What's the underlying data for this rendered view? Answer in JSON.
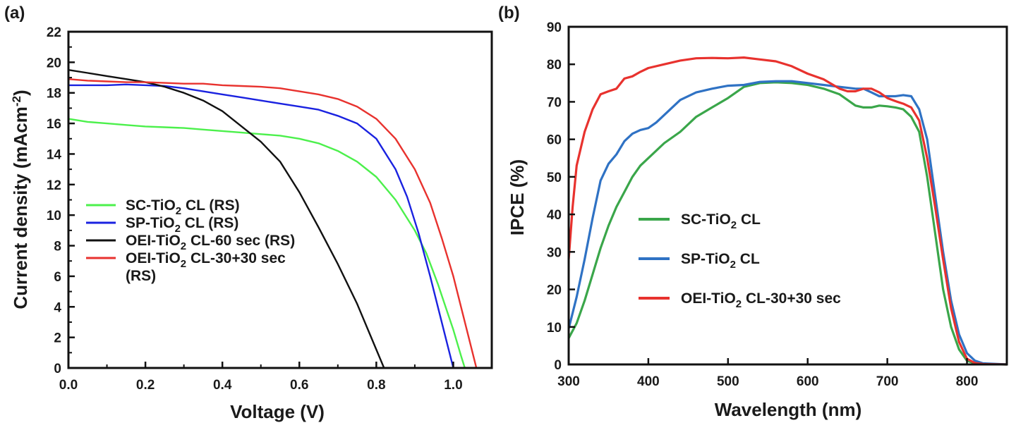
{
  "chart_data": [
    {
      "panel_label": "(a)",
      "type": "line",
      "title": "",
      "xlabel": "Voltage (V)",
      "ylabel_main": "Current density (mAcm",
      "ylabel_sup": "-2",
      "ylabel_tail": ")",
      "xlim": [
        0.0,
        1.1
      ],
      "ylim": [
        0,
        22
      ],
      "xticks": [
        0.0,
        0.2,
        0.4,
        0.6,
        0.8,
        1.0
      ],
      "xtick_labels": [
        "0.0",
        "0.2",
        "0.4",
        "0.6",
        "0.8",
        "1.0"
      ],
      "yticks": [
        0,
        2,
        4,
        6,
        8,
        10,
        12,
        14,
        16,
        18,
        20,
        22
      ],
      "ytick_labels": [
        "0",
        "2",
        "4",
        "6",
        "8",
        "10",
        "12",
        "14",
        "16",
        "18",
        "20",
        "22"
      ],
      "grid": false,
      "legend_position": "center-left",
      "series": [
        {
          "name": "SC-TiO2 CL (RS)",
          "legend": {
            "pre": "SC-TiO",
            "sub": "2",
            "post": " CL (RS)",
            "line2": ""
          },
          "color": "#4cf04c",
          "x": [
            0.0,
            0.05,
            0.1,
            0.15,
            0.2,
            0.25,
            0.3,
            0.35,
            0.4,
            0.45,
            0.5,
            0.55,
            0.6,
            0.65,
            0.7,
            0.75,
            0.8,
            0.85,
            0.9,
            0.93,
            0.96,
            0.98,
            1.0,
            1.02,
            1.03
          ],
          "y": [
            16.3,
            16.1,
            16.0,
            15.9,
            15.8,
            15.75,
            15.7,
            15.6,
            15.5,
            15.4,
            15.3,
            15.2,
            15.0,
            14.7,
            14.2,
            13.5,
            12.5,
            11.0,
            9.0,
            7.5,
            5.5,
            4.0,
            2.5,
            0.8,
            0.0
          ]
        },
        {
          "name": "SP-TiO2 CL (RS)",
          "legend": {
            "pre": "SP-TiO",
            "sub": "2",
            "post": " CL (RS)",
            "line2": ""
          },
          "color": "#1a22e0",
          "x": [
            0.0,
            0.05,
            0.1,
            0.15,
            0.2,
            0.25,
            0.3,
            0.35,
            0.4,
            0.45,
            0.5,
            0.55,
            0.6,
            0.65,
            0.7,
            0.75,
            0.8,
            0.85,
            0.88,
            0.91,
            0.94,
            0.96,
            0.98,
            1.0
          ],
          "y": [
            18.5,
            18.5,
            18.5,
            18.55,
            18.5,
            18.45,
            18.3,
            18.1,
            17.9,
            17.7,
            17.5,
            17.3,
            17.1,
            16.9,
            16.5,
            16.0,
            15.0,
            13.0,
            11.2,
            8.8,
            6.0,
            4.0,
            2.0,
            0.0
          ]
        },
        {
          "name": "OEI-TiO2 CL-60 sec (RS)",
          "legend": {
            "pre": "OEI-TiO",
            "sub": "2",
            "post": " CL-60 sec (RS)",
            "line2": ""
          },
          "color": "#111111",
          "x": [
            0.0,
            0.05,
            0.1,
            0.15,
            0.2,
            0.25,
            0.3,
            0.35,
            0.4,
            0.45,
            0.5,
            0.55,
            0.6,
            0.65,
            0.7,
            0.75,
            0.8,
            0.82
          ],
          "y": [
            19.5,
            19.3,
            19.1,
            18.9,
            18.7,
            18.4,
            18.0,
            17.5,
            16.8,
            15.8,
            14.8,
            13.5,
            11.5,
            9.2,
            6.8,
            4.2,
            1.2,
            0.0
          ]
        },
        {
          "name": "OEI-TiO2 CL-30+30 sec (RS)",
          "legend": {
            "pre": "OEI-TiO",
            "sub": "2",
            "post": " CL-30+30 sec",
            "line2": "(RS)"
          },
          "color": "#e8322e",
          "x": [
            0.0,
            0.05,
            0.1,
            0.15,
            0.2,
            0.25,
            0.3,
            0.35,
            0.4,
            0.45,
            0.5,
            0.55,
            0.6,
            0.65,
            0.7,
            0.75,
            0.8,
            0.85,
            0.9,
            0.94,
            0.97,
            1.0,
            1.02,
            1.04,
            1.06
          ],
          "y": [
            18.9,
            18.8,
            18.75,
            18.7,
            18.7,
            18.65,
            18.6,
            18.6,
            18.5,
            18.45,
            18.4,
            18.3,
            18.1,
            17.9,
            17.6,
            17.1,
            16.3,
            15.0,
            13.0,
            10.8,
            8.5,
            6.0,
            4.0,
            2.0,
            0.0
          ]
        }
      ]
    },
    {
      "panel_label": "(b)",
      "type": "line",
      "title": "",
      "xlabel": "Wavelength (nm)",
      "ylabel": "IPCE (%)",
      "xlim": [
        300,
        850
      ],
      "ylim": [
        0,
        90
      ],
      "xticks": [
        300,
        400,
        500,
        600,
        700,
        800
      ],
      "xtick_labels": [
        "300",
        "400",
        "500",
        "600",
        "700",
        "800"
      ],
      "yticks": [
        0,
        10,
        20,
        30,
        40,
        50,
        60,
        70,
        80,
        90
      ],
      "ytick_labels": [
        "0",
        "10",
        "20",
        "30",
        "40",
        "50",
        "60",
        "70",
        "80",
        "90"
      ],
      "grid": false,
      "legend_position": "center",
      "series": [
        {
          "name": "SC-TiO2 CL",
          "legend": {
            "pre": "SC-TiO",
            "sub": "2",
            "post": " CL"
          },
          "color": "#3aa64a",
          "x": [
            300,
            310,
            320,
            330,
            340,
            350,
            360,
            370,
            380,
            390,
            400,
            420,
            440,
            460,
            480,
            500,
            520,
            540,
            560,
            580,
            600,
            620,
            640,
            660,
            670,
            680,
            690,
            700,
            710,
            720,
            730,
            740,
            750,
            760,
            770,
            780,
            790,
            800,
            810,
            820,
            850
          ],
          "y": [
            7,
            11,
            17,
            24,
            31,
            37,
            42,
            46,
            50,
            53,
            55,
            59,
            62,
            66,
            68.5,
            71,
            74,
            75,
            75.2,
            75,
            74.5,
            73.5,
            72,
            69,
            68.5,
            68.5,
            69,
            68.8,
            68.5,
            68,
            66,
            62,
            50,
            35,
            20,
            10,
            4,
            1,
            0.3,
            0.1,
            0
          ]
        },
        {
          "name": "SP-TiO2 CL",
          "legend": {
            "pre": "SP-TiO",
            "sub": "2",
            "post": " CL"
          },
          "color": "#2f72c4",
          "x": [
            300,
            310,
            320,
            330,
            340,
            350,
            360,
            370,
            380,
            390,
            400,
            410,
            420,
            440,
            460,
            480,
            500,
            520,
            540,
            560,
            580,
            600,
            620,
            640,
            660,
            670,
            680,
            690,
            700,
            710,
            720,
            730,
            740,
            750,
            760,
            770,
            780,
            790,
            800,
            810,
            820,
            850
          ],
          "y": [
            9.5,
            18,
            28,
            39,
            49,
            53.5,
            56,
            59.5,
            61.5,
            62.5,
            63,
            64.5,
            66.5,
            70.5,
            72.5,
            73.5,
            74.3,
            74.5,
            75.3,
            75.5,
            75.5,
            75,
            74.5,
            74,
            73.5,
            73.5,
            72.5,
            71.5,
            71.5,
            71.5,
            71.8,
            71.5,
            68,
            60,
            45,
            30,
            17,
            8,
            3,
            1,
            0.3,
            0
          ]
        },
        {
          "name": "OEI-TiO2 CL-30+30 sec",
          "legend": {
            "pre": "OEI-TiO",
            "sub": "2",
            "post": " CL-30+30 sec"
          },
          "color": "#e8322e",
          "x": [
            300,
            305,
            310,
            320,
            330,
            340,
            350,
            360,
            370,
            380,
            390,
            400,
            420,
            440,
            460,
            480,
            500,
            520,
            540,
            560,
            580,
            600,
            620,
            640,
            650,
            660,
            670,
            680,
            690,
            700,
            710,
            720,
            730,
            740,
            750,
            760,
            770,
            780,
            790,
            800,
            810,
            820,
            850
          ],
          "y": [
            28,
            42,
            53,
            62,
            68,
            72,
            72.8,
            73.5,
            76.2,
            76.8,
            78,
            79,
            80,
            81,
            81.6,
            81.7,
            81.6,
            81.8,
            81.3,
            80.8,
            79.5,
            77.5,
            76,
            73.5,
            72.8,
            72.8,
            73.5,
            73.5,
            72.5,
            71,
            70.2,
            69.5,
            68.5,
            65,
            55,
            42,
            28,
            15,
            6,
            1.5,
            0.4,
            0.1,
            0
          ]
        }
      ]
    }
  ]
}
